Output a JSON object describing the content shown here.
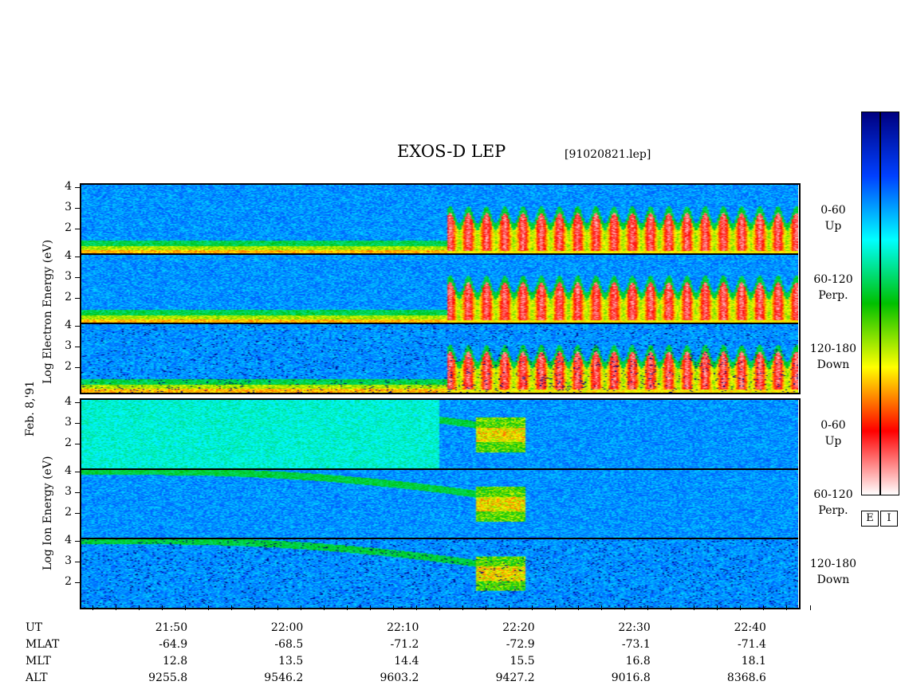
{
  "header": {
    "title": "EXOS-D LEP",
    "filename": "[91020821.lep]"
  },
  "left_labels": {
    "electron": "Log  Electron  Energy (eV)",
    "date": "Feb. 8,'91",
    "ion": "Log   Ion   Energy (eV)"
  },
  "chart_data": {
    "type": "heatmap",
    "title": "EXOS-D LEP",
    "xlabel": "UT",
    "ylabel": "Log Energy (eV)",
    "ytick_labels": [
      "4",
      "3",
      "2"
    ],
    "ylim": [
      0.8,
      4.1
    ],
    "xlim_minutes": [
      0,
      62
    ],
    "panels": [
      {
        "group": "Electron",
        "pitch": "0-60",
        "direction": "Up"
      },
      {
        "group": "Electron",
        "pitch": "60-120",
        "direction": "Perp."
      },
      {
        "group": "Electron",
        "pitch": "120-180",
        "direction": "Down"
      },
      {
        "group": "Ion",
        "pitch": "0-60",
        "direction": "Up"
      },
      {
        "group": "Ion",
        "pitch": "60-120",
        "direction": "Perp."
      },
      {
        "group": "Ion",
        "pitch": "120-180",
        "direction": "Down"
      }
    ],
    "colorbars": [
      {
        "label": "E",
        "colors": [
          "#ffffff",
          "#ff0000",
          "#ffff00",
          "#00c000",
          "#00ffff",
          "#0040ff",
          "#000080"
        ]
      },
      {
        "label": "I",
        "colors": [
          "#ffffff",
          "#ff0000",
          "#ffff00",
          "#00c000",
          "#00ffff",
          "#0040ff",
          "#000080"
        ]
      }
    ],
    "axis_rows": [
      {
        "name": "UT",
        "values": [
          "21:50",
          "22:00",
          "22:10",
          "22:20",
          "22:30",
          "22:40"
        ]
      },
      {
        "name": "MLAT",
        "values": [
          "-64.9",
          "-68.5",
          "-71.2",
          "-72.9",
          "-73.1",
          "-71.4"
        ]
      },
      {
        "name": "MLT",
        "values": [
          "12.8",
          "13.5",
          "14.4",
          "15.5",
          "16.8",
          "18.1"
        ]
      },
      {
        "name": "ALT",
        "values": [
          "9255.8",
          "9546.2",
          "9603.2",
          "9427.2",
          "9016.8",
          "8368.6"
        ]
      }
    ]
  }
}
